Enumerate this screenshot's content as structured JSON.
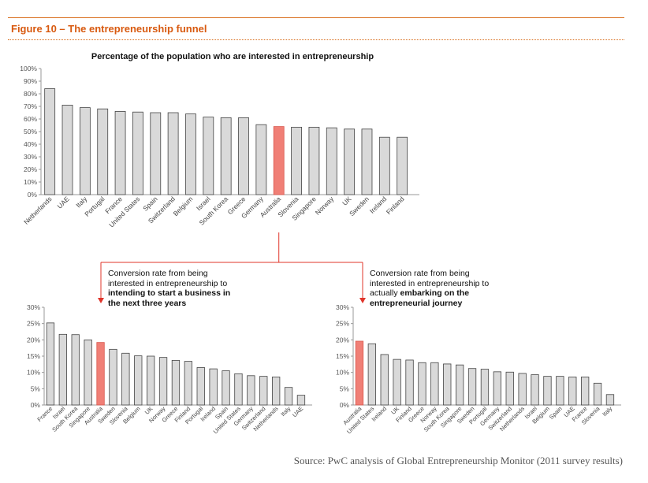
{
  "figure": {
    "title": "Figure 10 – The entrepreneurship funnel",
    "source": "Source: PwC analysis of Global Entrepreneurship Monitor (2011 survey results)"
  },
  "callouts": {
    "left": {
      "line1": "Conversion rate from being",
      "line2": "interested in entrepreneurship to",
      "line3": "intending to start a business in",
      "line4": "the next three years"
    },
    "right": {
      "line1": "Conversion rate from being",
      "line2": "interested in entrepreneurship to",
      "line3a": "actually ",
      "line3b": "embarking on the",
      "line4": "entrepreneurial journey"
    }
  },
  "colors": {
    "bar": "#d9d9d9",
    "highlight": "#f07f76",
    "connector": "#e0342a",
    "title": "#d85a10"
  },
  "chart_data": [
    {
      "type": "bar",
      "title": "Percentage of the population  who are interested in entrepreneurship",
      "highlight": "Australia",
      "ylim": [
        0,
        100
      ],
      "yticks": [
        "0%",
        "10%",
        "20%",
        "30%",
        "40%",
        "50%",
        "60%",
        "70%",
        "80%",
        "90%",
        "100%"
      ],
      "categories": [
        "Netherlands",
        "UAE",
        "Italy",
        "Portugal",
        "France",
        "United States",
        "Spain",
        "Switzerland",
        "Belgium",
        "Israel",
        "South Korea",
        "Greece",
        "Germany",
        "Australia",
        "Slovenia",
        "Singapore",
        "Norway",
        "UK",
        "Sweden",
        "Ireland",
        "Finland"
      ],
      "values": [
        84,
        71,
        69,
        68,
        66,
        65.5,
        65,
        65,
        64,
        61.5,
        61,
        61,
        55.5,
        54,
        53.5,
        53.5,
        53,
        52,
        52,
        45.5,
        45.5
      ]
    },
    {
      "type": "bar",
      "highlight": "Australia",
      "ylim": [
        0,
        30
      ],
      "yticks": [
        "0%",
        "5%",
        "10%",
        "15%",
        "20%",
        "25%",
        "30%"
      ],
      "categories": [
        "France",
        "Israel",
        "South Korea",
        "Singapore",
        "Australia",
        "Sweden",
        "Slovenia",
        "Belgium",
        "UK",
        "Norway",
        "Greece",
        "Finland",
        "Portugal",
        "Ireland",
        "Spain",
        "United States",
        "Germany",
        "Switzerland",
        "Netherlands",
        "Italy",
        "UAE"
      ],
      "values": [
        25.2,
        21.7,
        21.6,
        20,
        19.2,
        17.1,
        15.9,
        15.1,
        15,
        14.6,
        13.7,
        13.4,
        11.5,
        11.1,
        10.5,
        9.6,
        9,
        8.8,
        8.6,
        5.4,
        3
      ]
    },
    {
      "type": "bar",
      "highlight": "Australia",
      "ylim": [
        0,
        30
      ],
      "yticks": [
        "0%",
        "5%",
        "10%",
        "15%",
        "20%",
        "25%",
        "30%"
      ],
      "categories": [
        "Australia",
        "United States",
        "Ireland",
        "UK",
        "Finland",
        "Greece",
        "Norway",
        "South Korea",
        "Singapore",
        "Sweden",
        "Portugal",
        "Germany",
        "Switzerland",
        "Netherlands",
        "Israel",
        "Belgium",
        "Spain",
        "UAE",
        "France",
        "Slovenia",
        "Italy"
      ],
      "values": [
        19.6,
        18.8,
        15.5,
        14,
        13.8,
        13,
        13,
        12.6,
        12.3,
        11.2,
        11,
        10.2,
        10.1,
        9.7,
        9.3,
        8.8,
        8.8,
        8.6,
        8.6,
        6.7,
        3.2
      ]
    }
  ]
}
